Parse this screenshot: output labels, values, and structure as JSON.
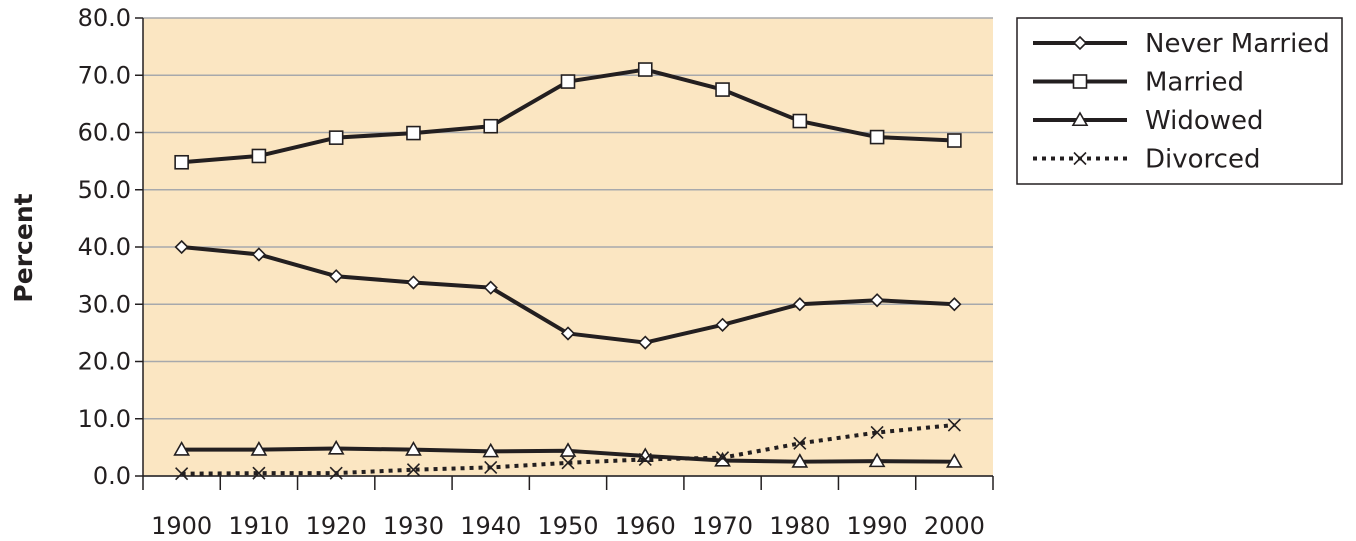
{
  "chart_data": {
    "type": "line",
    "ylabel": "Percent",
    "xlabel": "",
    "ylim": [
      0,
      80
    ],
    "yticks": [
      "0.0",
      "10.0",
      "20.0",
      "30.0",
      "40.0",
      "50.0",
      "60.0",
      "70.0",
      "80.0"
    ],
    "categories": [
      "1900",
      "1910",
      "1920",
      "1930",
      "1940",
      "1950",
      "1960",
      "1970",
      "1980",
      "1990",
      "2000"
    ],
    "grid": true,
    "legend_position": "right-top",
    "plot_background": "#fbe6c2",
    "line_color": "#231f20",
    "series": [
      {
        "name": "Never Married",
        "marker": "diamond",
        "dash": "solid",
        "values": [
          40.0,
          38.7,
          34.9,
          33.8,
          32.9,
          24.9,
          23.3,
          26.4,
          30.0,
          30.7,
          30.0
        ]
      },
      {
        "name": "Married",
        "marker": "square",
        "dash": "solid",
        "values": [
          54.8,
          55.9,
          59.1,
          59.9,
          61.1,
          68.9,
          71.0,
          67.5,
          62.0,
          59.2,
          58.6
        ]
      },
      {
        "name": "Widowed",
        "marker": "triangle",
        "dash": "solid",
        "values": [
          4.6,
          4.6,
          4.8,
          4.6,
          4.3,
          4.4,
          3.5,
          2.7,
          2.5,
          2.6,
          2.5
        ]
      },
      {
        "name": "Divorced",
        "marker": "x",
        "dash": "dotted",
        "values": [
          0.4,
          0.5,
          0.5,
          1.1,
          1.5,
          2.3,
          2.9,
          3.2,
          5.7,
          7.6,
          8.9
        ]
      }
    ]
  }
}
